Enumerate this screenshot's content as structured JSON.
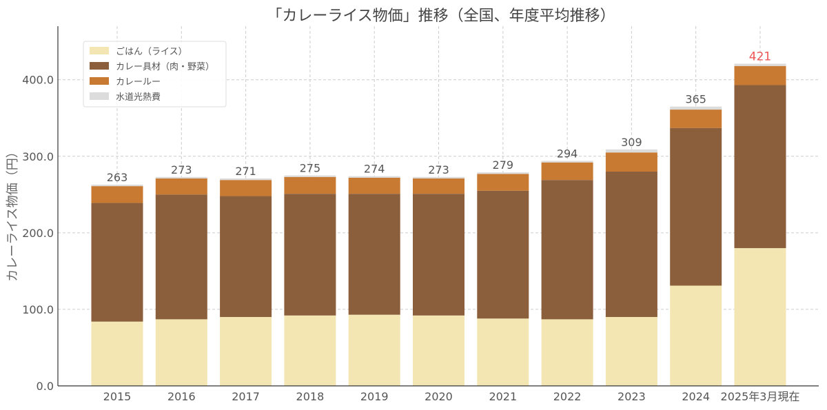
{
  "chart_data": {
    "type": "bar",
    "stacked": true,
    "title": "「カレーライス物価」推移（全国、年度平均推移）",
    "xlabel": "",
    "ylabel": "カレーライス物価（円）",
    "ylim": [
      0,
      470
    ],
    "yticks": [
      0,
      100,
      200,
      300,
      400
    ],
    "ytick_labels": [
      "0.0",
      "100.0",
      "200.0",
      "300.0",
      "400.0"
    ],
    "grid": true,
    "legend_position": "top-left",
    "categories": [
      "2015",
      "2016",
      "2017",
      "2018",
      "2019",
      "2020",
      "2021",
      "2022",
      "2023",
      "2024",
      "2025年3月現在"
    ],
    "series": [
      {
        "name": "ごはん（ライス）",
        "color": "#f3e6b3",
        "values": [
          84,
          87,
          90,
          92,
          93,
          92,
          88,
          87,
          90,
          131,
          180
        ]
      },
      {
        "name": "カレー具材（肉・野菜）",
        "color": "#8b5e3c",
        "values": [
          155,
          163,
          158,
          159,
          158,
          159,
          167,
          182,
          190,
          206,
          213
        ]
      },
      {
        "name": "カレールー",
        "color": "#c87a32",
        "values": [
          22,
          21,
          21,
          22,
          21,
          20,
          22,
          23,
          25,
          24,
          25
        ]
      },
      {
        "name": "水道光熱費",
        "color": "#dcdcdc",
        "values": [
          2,
          2,
          2,
          2,
          2,
          2,
          2,
          2,
          4,
          4,
          3
        ]
      }
    ],
    "totals": [
      "263",
      "273",
      "271",
      "275",
      "274",
      "273",
      "279",
      "294",
      "309",
      "365",
      "421"
    ],
    "total_label_color": "#555555",
    "highlight_total_color": "#ee5555"
  }
}
